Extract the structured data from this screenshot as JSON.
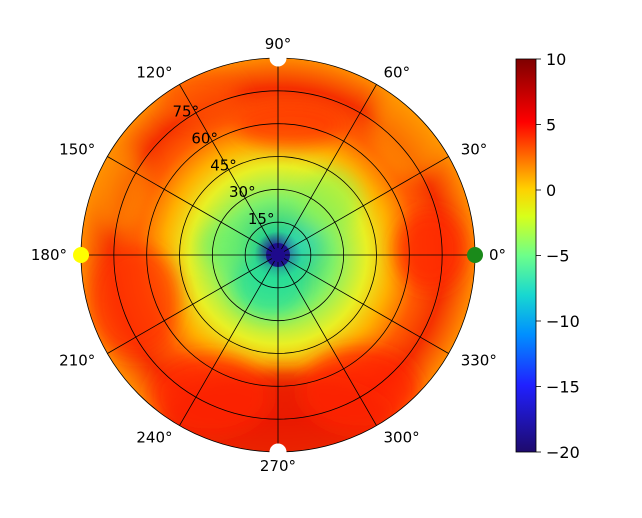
{
  "chart_data": {
    "type": "heatmap",
    "projection": "polar",
    "title": "",
    "angular_ticks": [
      "0°",
      "30°",
      "60°",
      "90°",
      "120°",
      "150°",
      "180°",
      "210°",
      "240°",
      "270°",
      "300°",
      "330°"
    ],
    "radial_ticks": [
      "15°",
      "30°",
      "45°",
      "60°",
      "75°"
    ],
    "radial_range": [
      0,
      90
    ],
    "grid": true,
    "colorbar": {
      "position": "right",
      "range": [
        -20,
        10
      ],
      "ticks": [
        "10",
        "5",
        "0",
        "−5",
        "−10",
        "−15",
        "−20"
      ],
      "colormap": "jet-like"
    },
    "description_values": {
      "center_value": -20,
      "inner_ring_value_range": [
        -8,
        -3
      ],
      "mid_ring_value_range": [
        -2,
        2
      ],
      "outer_ring_value_range": [
        4,
        8
      ]
    },
    "markers": [
      {
        "angle": 0,
        "radius": 90,
        "color": "#1a8a1a"
      },
      {
        "angle": 90,
        "radius": 90,
        "color": "#ffffff"
      },
      {
        "angle": 180,
        "radius": 90,
        "color": "#ffff00"
      },
      {
        "angle": 270,
        "radius": 90,
        "color": "#ffffff"
      },
      {
        "angle": 0,
        "radius": 0,
        "color": "#1e0a8c"
      }
    ]
  }
}
